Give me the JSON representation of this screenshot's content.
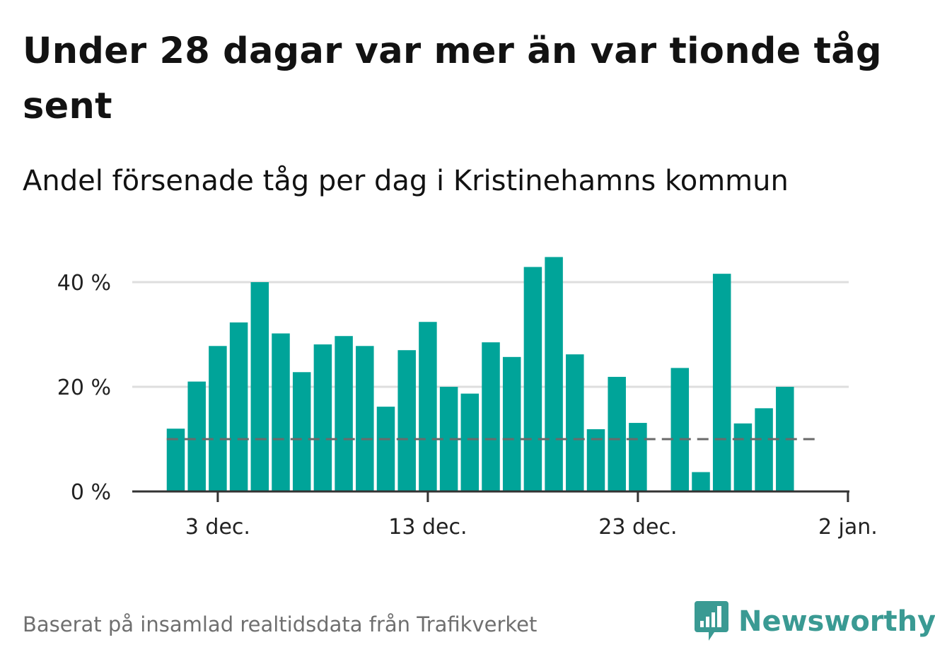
{
  "title": "Under 28 dagar var mer än var tionde tåg sent",
  "subtitle": "Andel försenade tåg per dag i Kristinehamns kommun",
  "source": "Baserat på insamlad realtidsdata från Trafikverket",
  "brand": {
    "name": "Newsworthy",
    "icon": "newsworthy-logo-icon"
  },
  "colors": {
    "bar": "#00a499",
    "reference_line": "#6a6a6a",
    "grid": "#dedede",
    "axis": "#333333",
    "brand": "#3a9a93"
  },
  "chart_data": {
    "type": "bar",
    "x_type": "date",
    "x": [
      "2023-12-01",
      "2023-12-02",
      "2023-12-03",
      "2023-12-04",
      "2023-12-05",
      "2023-12-06",
      "2023-12-07",
      "2023-12-08",
      "2023-12-09",
      "2023-12-10",
      "2023-12-11",
      "2023-12-12",
      "2023-12-13",
      "2023-12-14",
      "2023-12-15",
      "2023-12-16",
      "2023-12-17",
      "2023-12-18",
      "2023-12-19",
      "2023-12-20",
      "2023-12-21",
      "2023-12-22",
      "2023-12-23",
      "2023-12-24",
      "2023-12-25",
      "2023-12-26",
      "2023-12-27",
      "2023-12-28",
      "2023-12-29",
      "2023-12-30"
    ],
    "values": [
      12,
      21,
      27.8,
      32.3,
      40,
      30.2,
      22.8,
      28.1,
      29.7,
      27.8,
      16.2,
      27,
      32.4,
      20,
      18.7,
      28.5,
      25.7,
      42.9,
      44.8,
      26.2,
      11.9,
      21.9,
      13.1,
      null,
      23.6,
      3.7,
      41.6,
      13,
      15.9,
      20
    ],
    "reference_line": {
      "value": 10
    },
    "ylim": [
      0,
      50
    ],
    "yticks": [
      {
        "value": 0,
        "label": "0 %"
      },
      {
        "value": 20,
        "label": "20 %"
      },
      {
        "value": 40,
        "label": "40 %"
      }
    ],
    "xticks": [
      {
        "date": "2023-12-03",
        "label": "3 dec."
      },
      {
        "date": "2023-12-13",
        "label": "13 dec."
      },
      {
        "date": "2023-12-23",
        "label": "23 dec."
      },
      {
        "date": "2024-01-02",
        "label": "2 jan."
      }
    ],
    "grid": true,
    "legend": "none"
  }
}
